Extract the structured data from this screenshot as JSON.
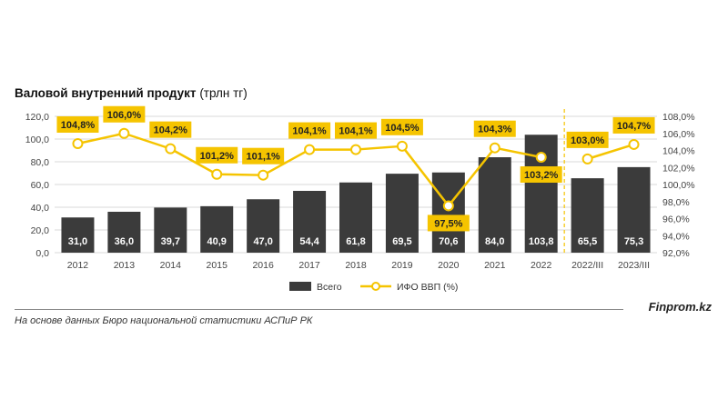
{
  "header": {
    "title_bold": "Валовой внутренний продукт",
    "title_unit": "(трлн тг)"
  },
  "footer": {
    "source": "На основе данных Бюро национальной статистики АСПиР РК",
    "brand": "Finprom.kz"
  },
  "colors": {
    "bar": "#3b3b3b",
    "line": "#f5c400",
    "label_box": "#f5c400",
    "divider": "#f5c400",
    "grid": "#d9d9d9"
  },
  "chart_data": {
    "type": "bar",
    "categories": [
      "2012",
      "2013",
      "2014",
      "2015",
      "2016",
      "2017",
      "2018",
      "2019",
      "2020",
      "2021",
      "2022",
      "2022/III",
      "2023/III"
    ],
    "series": [
      {
        "name": "Всего",
        "type": "bar",
        "axis": "left",
        "values": [
          31.0,
          36.0,
          39.7,
          40.9,
          47.0,
          54.4,
          61.8,
          69.5,
          70.6,
          84.0,
          103.8,
          65.5,
          75.3
        ],
        "labels": [
          "31,0",
          "36,0",
          "39,7",
          "40,9",
          "47,0",
          "54,4",
          "61,8",
          "69,5",
          "70,6",
          "84,0",
          "103,8",
          "65,5",
          "75,3"
        ]
      },
      {
        "name": "ИФО ВВП (%)",
        "type": "line",
        "axis": "right",
        "values": [
          104.8,
          106.0,
          104.2,
          101.2,
          101.1,
          104.1,
          104.1,
          104.5,
          97.5,
          104.3,
          103.2,
          103.0,
          104.7
        ],
        "labels": [
          "104,8%",
          "106,0%",
          "104,2%",
          "101,2%",
          "101,1%",
          "104,1%",
          "104,1%",
          "104,5%",
          "97,5%",
          "104,3%",
          "103,2%",
          "103,0%",
          "104,7%"
        ],
        "break_after_index": 10
      }
    ],
    "left_axis": {
      "ylim": [
        0,
        120
      ],
      "ticks": [
        0,
        20,
        40,
        60,
        80,
        100,
        120
      ],
      "tick_labels": [
        "0,0",
        "20,0",
        "40,0",
        "60,0",
        "80,0",
        "100,0",
        "120,0"
      ]
    },
    "right_axis": {
      "ylim": [
        92,
        108
      ],
      "ticks": [
        92,
        94,
        96,
        98,
        100,
        102,
        104,
        106,
        108
      ],
      "tick_labels": [
        "92,0%",
        "94,0%",
        "96,0%",
        "98,0%",
        "100,0%",
        "102,0%",
        "104,0%",
        "106,0%",
        "108,0%"
      ]
    },
    "divider_after_index": 10,
    "grid": true,
    "legend": {
      "position": "bottom",
      "entries": [
        "Всего",
        "ИФО ВВП (%)"
      ]
    }
  }
}
